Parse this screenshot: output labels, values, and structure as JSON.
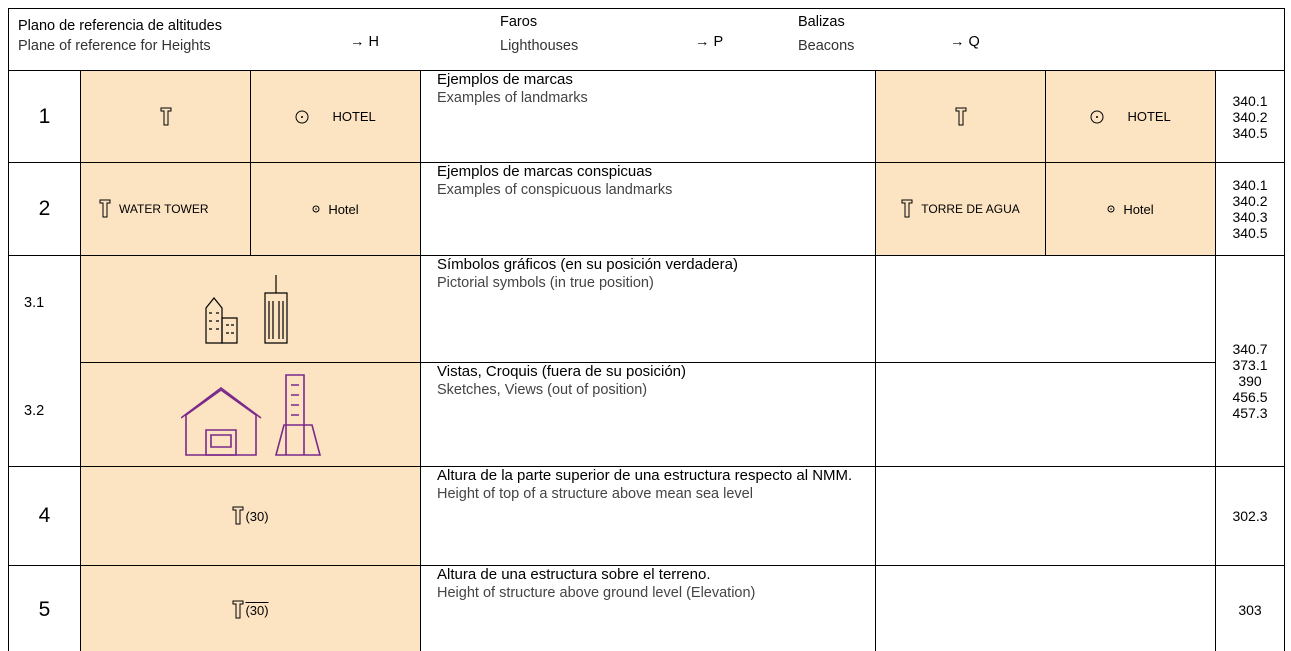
{
  "header": {
    "reference_plane": {
      "es": "Plano de referencia de altitudes",
      "en": "Plane of reference for Heights",
      "symbol": "→ H"
    },
    "lighthouses": {
      "es": "Faros",
      "en": "Lighthouses",
      "symbol": "→ P"
    },
    "beacons": {
      "es": "Balizas",
      "en": "Beacons",
      "symbol": "→ Q"
    }
  },
  "rows": [
    {
      "number": "1",
      "landmark_labels": [
        "HOTEL"
      ],
      "description_es": "Ejemplos de marcas",
      "description_en": "Examples of landmarks",
      "beacon_labels": [
        "HOTEL"
      ],
      "references": [
        "340.1",
        "340.2",
        "340.5"
      ]
    },
    {
      "number": "2",
      "landmark_labels": [
        "WATER TOWER",
        "Hotel"
      ],
      "description_es": "Ejemplos de marcas conspicuas",
      "description_en": "Examples of conspicuous landmarks",
      "beacon_labels": [
        "TORRE DE AGUA",
        "Hotel"
      ],
      "references": [
        "340.1",
        "340.2",
        "340.3",
        "340.5"
      ]
    },
    {
      "number": "3.1",
      "description_es": "Símbolos gráficos (en su posición verdadera)",
      "description_en": "Pictorial symbols (in true position)",
      "references": [
        "340.7",
        "373.1",
        "390",
        "456.5",
        "457.3"
      ]
    },
    {
      "number": "3.2",
      "description_es": "Vistas, Croquis (fuera de su posición)",
      "description_en": "Sketches, Views (out of position)"
    },
    {
      "number": "4",
      "landmark_labels": [
        "(30)"
      ],
      "description_es": "Altura de la parte superior de una estructura respecto al NMM.",
      "description_en": "Height of top of a structure above mean sea level",
      "references": [
        "302.3"
      ]
    },
    {
      "number": "5",
      "landmark_labels": [
        "(30)"
      ],
      "description_es": "Altura de una estructura sobre el terreno.",
      "description_en": "Height of structure above ground level (Elevation)",
      "references": [
        "303"
      ]
    }
  ]
}
